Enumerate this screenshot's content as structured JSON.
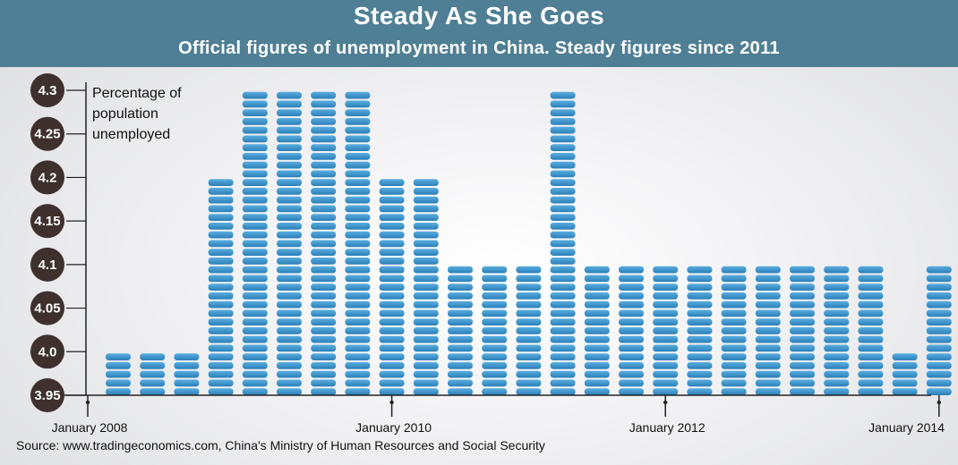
{
  "title": "Steady As She Goes",
  "subtitle": "Official figures of unemployment in China. Steady figures since 2011",
  "source": "Source: www.tradingeconomics.com, China's Ministry of Human Resources and Social Security",
  "colors": {
    "header_bg": "#4f7f94",
    "bar": "#2a7fb8",
    "bar_light": "#5aaee0",
    "badge": "#3e302c",
    "axis": "#222222"
  },
  "chart_data": {
    "type": "bar",
    "title": "Steady As She Goes",
    "subtitle": "Official figures of unemployment in China. Steady figures since 2011",
    "ylabel": [
      "Percentage of",
      "population",
      "unemployed"
    ],
    "ylim": [
      3.95,
      4.3
    ],
    "yticks": [
      4.3,
      4.25,
      4.2,
      4.15,
      4.1,
      4.05,
      4.0,
      3.95
    ],
    "ytick_labels": [
      "4.3",
      "4.25",
      "4.2",
      "4.15",
      "4.1",
      "4.05",
      "4.0",
      "3.95"
    ],
    "xtick_labels": [
      {
        "label": "January 2008",
        "index": 0
      },
      {
        "label": "January 2010",
        "index": 8
      },
      {
        "label": "January 2012",
        "index": 16
      },
      {
        "label": "January 2014",
        "index": 24
      }
    ],
    "values": [
      4.0,
      4.0,
      4.0,
      4.2,
      4.3,
      4.3,
      4.3,
      4.3,
      4.2,
      4.2,
      4.1,
      4.1,
      4.1,
      4.3,
      4.1,
      4.1,
      4.1,
      4.1,
      4.1,
      4.1,
      4.1,
      4.1,
      4.1,
      4.0,
      4.1
    ],
    "grid": false,
    "legend": "none"
  }
}
